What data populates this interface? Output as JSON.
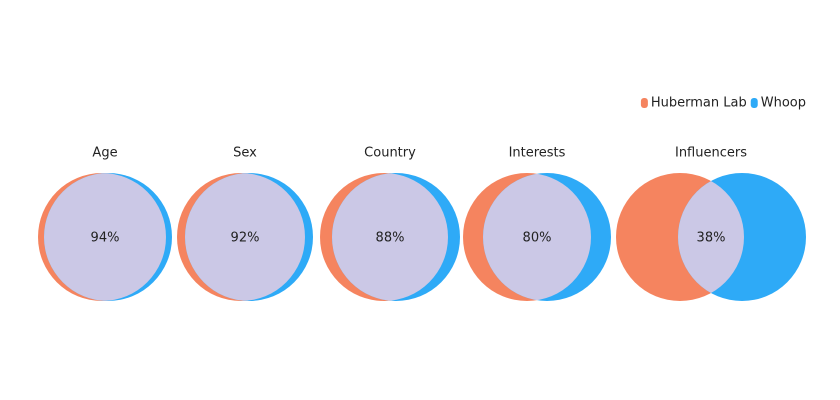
{
  "chart_data": {
    "type": "venn",
    "series": [
      {
        "name": "Huberman Lab",
        "color": "#f5845f"
      },
      {
        "name": "Whoop",
        "color": "#2eaaf7"
      }
    ],
    "overlap_color": "#cbc8e6",
    "categories": [
      "Age",
      "Sex",
      "Country",
      "Interests",
      "Influencers"
    ],
    "values": [
      94,
      92,
      88,
      80,
      38
    ],
    "value_labels": [
      "94%",
      "92%",
      "88%",
      "80%",
      "38%"
    ]
  }
}
